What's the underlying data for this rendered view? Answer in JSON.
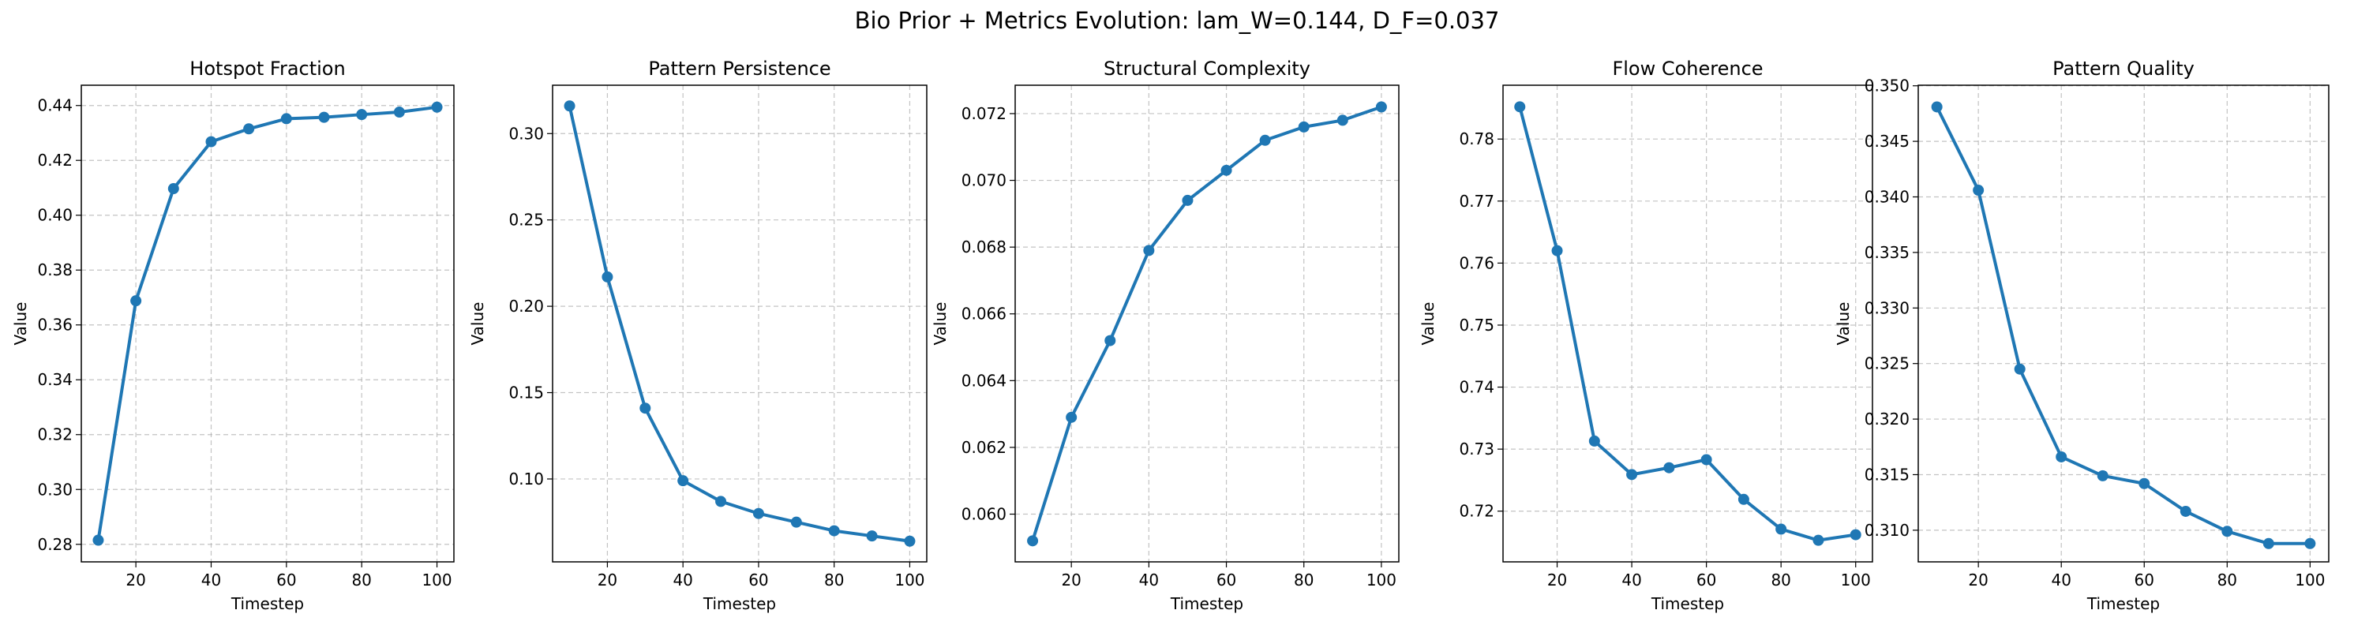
{
  "figure": {
    "title": "Bio Prior + Metrics Evolution: lam_W=0.144, D_F=0.037"
  },
  "style": {
    "line_color": "#1f77b4",
    "grid_color": "#b0b0b0",
    "grid": true,
    "grid_style": "dashed"
  },
  "chart_data": [
    {
      "type": "line",
      "title": "Hotspot Fraction",
      "xlabel": "Timestep",
      "ylabel": "Value",
      "x": [
        10,
        20,
        30,
        40,
        50,
        60,
        70,
        80,
        90,
        100
      ],
      "series": [
        {
          "values": [
            0.2815,
            0.3688,
            0.4097,
            0.4268,
            0.4315,
            0.4352,
            0.4357,
            0.4367,
            0.4376,
            0.4394
          ]
        }
      ],
      "xlim": [
        5.5,
        104.5
      ],
      "ylim": [
        0.2736,
        0.4474
      ],
      "xticks": [
        20,
        40,
        60,
        80,
        100
      ],
      "yticks": [
        0.28,
        0.3,
        0.32,
        0.34,
        0.36,
        0.38,
        0.4,
        0.42,
        0.44
      ],
      "ytick_labels": [
        "0.28",
        "0.30",
        "0.32",
        "0.34",
        "0.36",
        "0.38",
        "0.40",
        "0.42",
        "0.44"
      ]
    },
    {
      "type": "line",
      "title": "Pattern Persistence",
      "xlabel": "Timestep",
      "ylabel": "Value",
      "x": [
        10,
        20,
        30,
        40,
        50,
        60,
        70,
        80,
        90,
        100
      ],
      "series": [
        {
          "values": [
            0.316,
            0.217,
            0.141,
            0.099,
            0.087,
            0.08,
            0.075,
            0.07,
            0.067,
            0.064
          ]
        }
      ],
      "xlim": [
        5.5,
        104.5
      ],
      "ylim": [
        0.052,
        0.328
      ],
      "xticks": [
        20,
        40,
        60,
        80,
        100
      ],
      "yticks": [
        0.1,
        0.15,
        0.2,
        0.25,
        0.3
      ],
      "ytick_labels": [
        "0.10",
        "0.15",
        "0.20",
        "0.25",
        "0.30"
      ]
    },
    {
      "type": "line",
      "title": "Structural Complexity",
      "xlabel": "Timestep",
      "ylabel": "Value",
      "x": [
        10,
        20,
        30,
        40,
        50,
        60,
        70,
        80,
        90,
        100
      ],
      "series": [
        {
          "values": [
            0.0592,
            0.0629,
            0.0652,
            0.0679,
            0.0694,
            0.0703,
            0.0712,
            0.0716,
            0.0718,
            0.0722
          ]
        }
      ],
      "xlim": [
        5.5,
        104.5
      ],
      "ylim": [
        0.05857,
        0.07285
      ],
      "xticks": [
        20,
        40,
        60,
        80,
        100
      ],
      "yticks": [
        0.06,
        0.062,
        0.064,
        0.066,
        0.068,
        0.07,
        0.072
      ],
      "ytick_labels": [
        "0.060",
        "0.062",
        "0.064",
        "0.066",
        "0.068",
        "0.070",
        "0.072"
      ]
    },
    {
      "type": "line",
      "title": "Flow Coherence",
      "xlabel": "Timestep",
      "ylabel": "Value",
      "x": [
        10,
        20,
        30,
        40,
        50,
        60,
        70,
        80,
        90,
        100
      ],
      "series": [
        {
          "values": [
            0.7852,
            0.762,
            0.7313,
            0.7259,
            0.727,
            0.7283,
            0.7219,
            0.7171,
            0.7153,
            0.7162
          ]
        }
      ],
      "xlim": [
        5.5,
        104.5
      ],
      "ylim": [
        0.71182,
        0.78868
      ],
      "xticks": [
        20,
        40,
        60,
        80,
        100
      ],
      "yticks": [
        0.72,
        0.73,
        0.74,
        0.75,
        0.76,
        0.77,
        0.78
      ],
      "ytick_labels": [
        "0.72",
        "0.73",
        "0.74",
        "0.75",
        "0.76",
        "0.77",
        "0.78"
      ]
    },
    {
      "type": "line",
      "title": "Pattern Quality",
      "xlabel": "Timestep",
      "ylabel": "Value",
      "x": [
        10,
        20,
        30,
        40,
        50,
        60,
        70,
        80,
        90,
        100
      ],
      "series": [
        {
          "values": [
            0.3481,
            0.3406,
            0.3245,
            0.3166,
            0.3149,
            0.3142,
            0.3117,
            0.3099,
            0.3088,
            0.3088
          ]
        }
      ],
      "xlim": [
        5.5,
        104.5
      ],
      "ylim": [
        0.30715,
        0.35005
      ],
      "xticks": [
        20,
        40,
        60,
        80,
        100
      ],
      "yticks": [
        0.31,
        0.315,
        0.32,
        0.325,
        0.33,
        0.335,
        0.34,
        0.345,
        0.35
      ],
      "ytick_labels": [
        "0.310",
        "0.315",
        "0.320",
        "0.325",
        "0.330",
        "0.335",
        "0.340",
        "0.345",
        "0.350"
      ]
    }
  ]
}
